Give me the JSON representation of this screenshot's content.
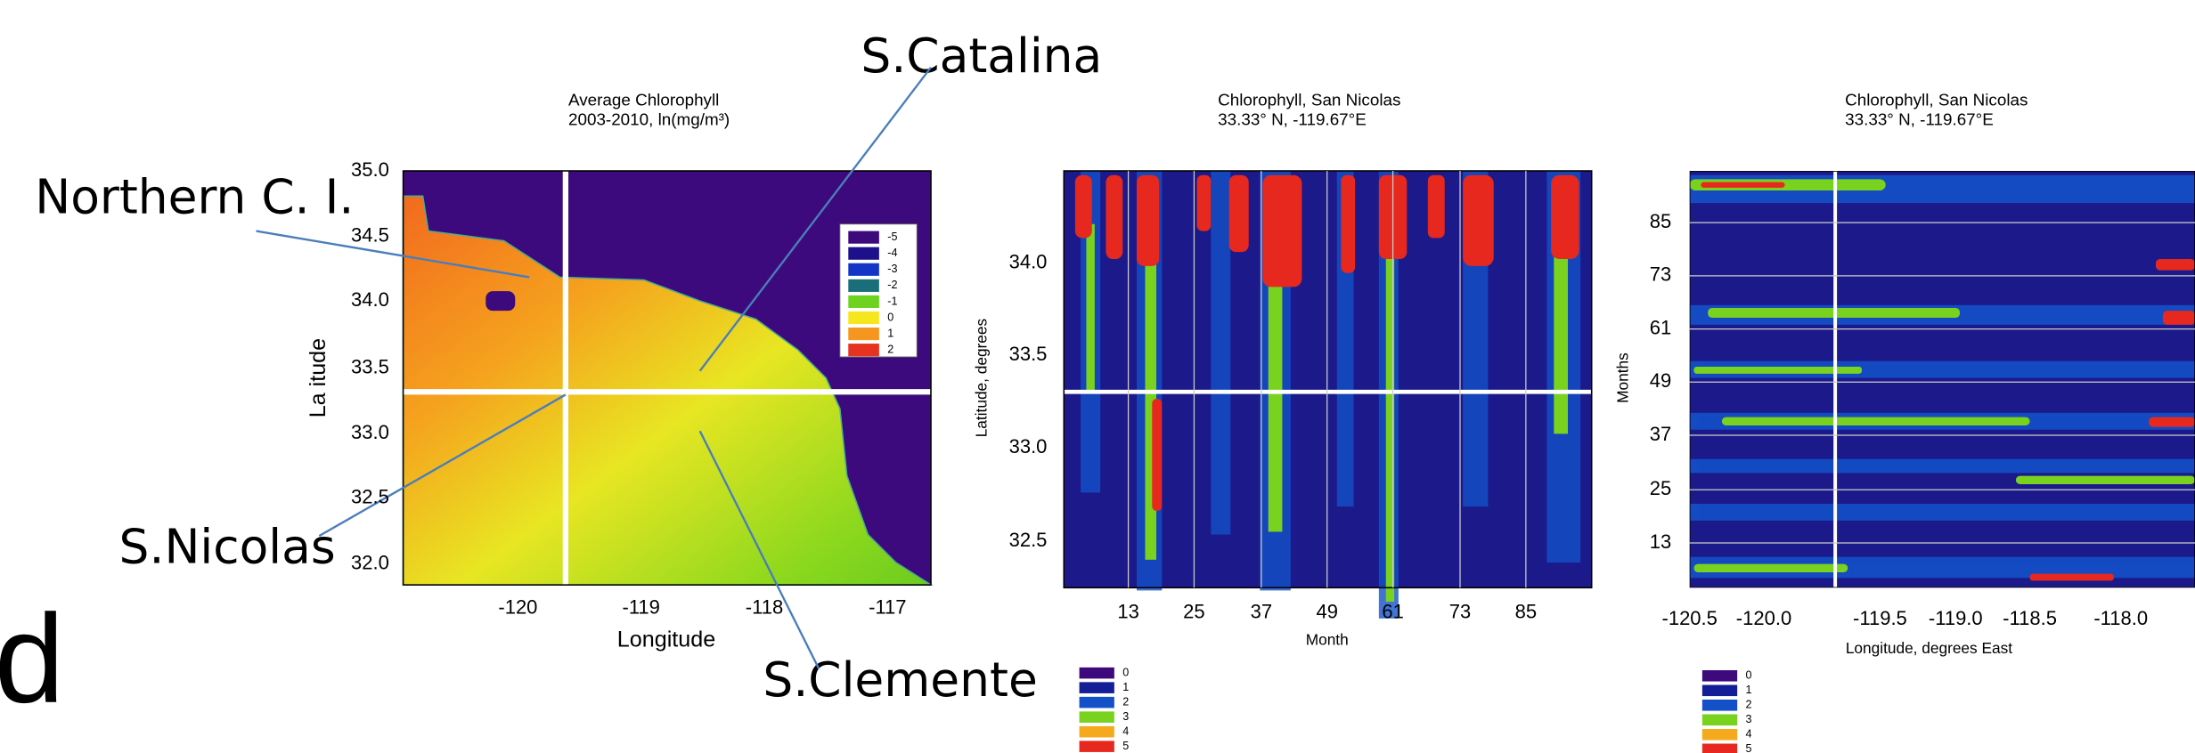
{
  "annotations": {
    "catalina": "S.Catalina",
    "northern": "Northern C. I.",
    "nicolas": "S.Nicolas",
    "clemente": "S.Clemente",
    "edge": "d"
  },
  "charts": [
    {
      "title": [
        "Average Chlorophyll",
        "2003-2010, ln(mg/m³)"
      ],
      "xlabel": "Longitude",
      "ylabel": "La itude",
      "yticks": [
        "35.0",
        "34.5",
        "34.0",
        "33.5",
        "33.0",
        "32.5",
        "32.0"
      ],
      "xticks": [
        "-120",
        "-119",
        "-118",
        "-117"
      ],
      "legend": [
        {
          "label": "-5",
          "color": "#3d0a7d"
        },
        {
          "label": "-4",
          "color": "#1e0f8a"
        },
        {
          "label": "-3",
          "color": "#1434c8"
        },
        {
          "label": "-2",
          "color": "#1a6e7a"
        },
        {
          "label": "-1",
          "color": "#6ed21e"
        },
        {
          "label": "0",
          "color": "#f5e61e"
        },
        {
          "label": "1",
          "color": "#f5961e"
        },
        {
          "label": "2",
          "color": "#e6321e"
        }
      ]
    },
    {
      "title": [
        "Chlorophyll, San Nicolas",
        "33.33° N, -119.67°E"
      ],
      "xlabel": "Month",
      "ylabel": "Latitude, degrees",
      "yticks": [
        "34.0",
        "33.5",
        "33.0",
        "32.5"
      ],
      "xticks": [
        "13",
        "25",
        "37",
        "49",
        "61",
        "73",
        "85"
      ],
      "legend": [
        {
          "label": "0",
          "color": "#3d0a7d"
        },
        {
          "label": "1",
          "color": "#141e96"
        },
        {
          "label": "2",
          "color": "#1450c8"
        },
        {
          "label": "3",
          "color": "#78d21e"
        },
        {
          "label": "4",
          "color": "#f5aa1e"
        },
        {
          "label": "5",
          "color": "#e6281e"
        }
      ]
    },
    {
      "title": [
        "Chlorophyll, San Nicolas",
        "33.33° N, -119.67°E"
      ],
      "xlabel": "Longitude, degrees East",
      "ylabel": "Months",
      "yticks": [
        "85",
        "73",
        "61",
        "49",
        "37",
        "25",
        "13"
      ],
      "xticks": [
        "-120.5",
        "-120.0",
        "-119.5",
        "-119.0",
        "-118.5",
        "-118.0"
      ],
      "legend": [
        {
          "label": "0",
          "color": "#3d0a7d"
        },
        {
          "label": "1",
          "color": "#141e96"
        },
        {
          "label": "2",
          "color": "#1450c8"
        },
        {
          "label": "3",
          "color": "#78d21e"
        },
        {
          "label": "4",
          "color": "#f5aa1e"
        },
        {
          "label": "5",
          "color": "#e6281e"
        }
      ]
    }
  ]
}
